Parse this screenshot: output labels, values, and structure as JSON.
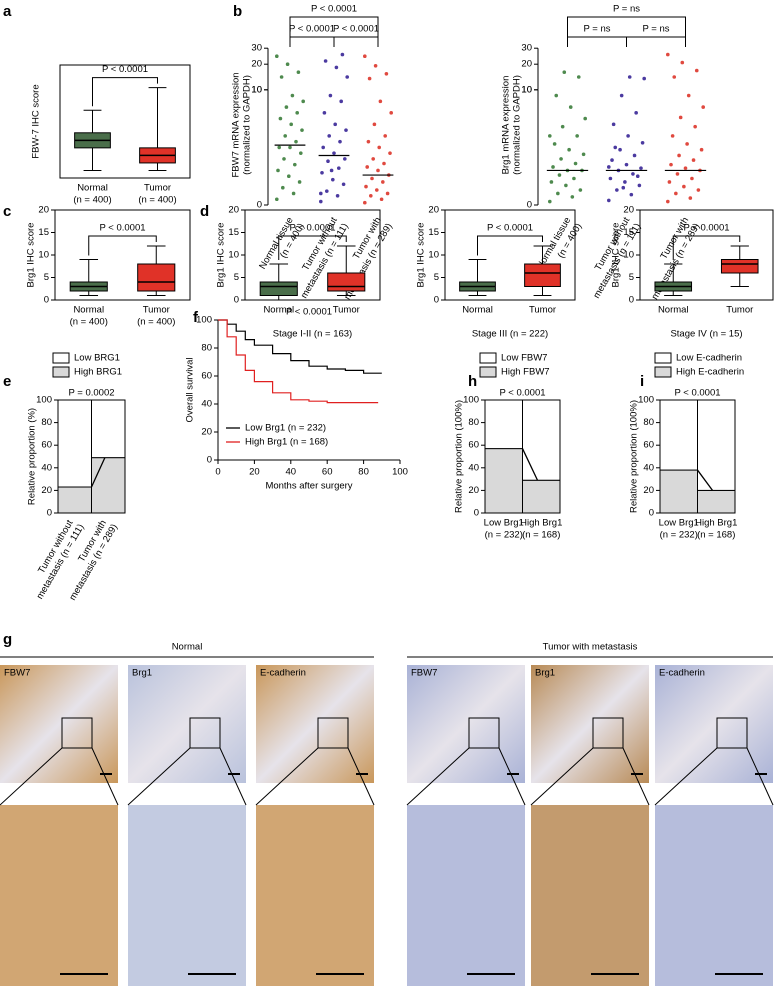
{
  "chart_data": [
    {
      "type": "box",
      "panel": "a",
      "p_label": "P < 0.0001",
      "ylabel": "FBW-7 IHC score",
      "ylim": [
        0,
        15
      ],
      "categories": [
        "Normal",
        "Tumor"
      ],
      "category_notes": [
        "(n = 400)",
        "(n = 400)"
      ],
      "colors": [
        "#4a6e4a",
        "#e03228"
      ],
      "boxes": [
        {
          "whislo": 1,
          "q1": 4,
          "med": 5,
          "q3": 6,
          "whishi": 9
        },
        {
          "whislo": 1,
          "q1": 2,
          "med": 3,
          "q3": 4,
          "whishi": 12
        }
      ]
    },
    {
      "type": "strip",
      "panel": "b",
      "ylabel": [
        "FBW7 mRNA expression",
        "(normalized to GAPDH)"
      ],
      "ylim_lower": [
        0,
        10
      ],
      "yticks_lower": [
        0,
        10
      ],
      "ylim_upper": [
        10,
        30
      ],
      "yticks_upper": [
        10,
        20,
        30
      ],
      "comparisons": [
        "P < 0.0001",
        "P < 0.0001",
        "P < 0.0001"
      ],
      "categories": [
        "Normal tissue",
        "Tumor without",
        "Tumor with"
      ],
      "category_notes": [
        "(n = 400)",
        "metastasis (n = 111)",
        "metastasis (n = 289)"
      ],
      "series": [
        {
          "color": "#4e8a4e",
          "median": 5.2,
          "values": [
            0.5,
            1,
            1.5,
            2,
            2.5,
            3,
            3.5,
            4,
            4.5,
            5,
            5,
            5.5,
            6,
            6.5,
            7,
            7.5,
            8,
            8.5,
            9,
            9.5,
            12,
            15,
            20,
            25
          ]
        },
        {
          "color": "#4b3aa0",
          "median": 4.3,
          "values": [
            0.3,
            0.8,
            1.2,
            1.8,
            2.2,
            2.8,
            3.2,
            3.8,
            4,
            4.5,
            5,
            5.5,
            6,
            6.5,
            7,
            8,
            9,
            9.5,
            12,
            18,
            22,
            26,
            3,
            1
          ]
        },
        {
          "color": "#e0493f",
          "median": 2.6,
          "values": [
            0.2,
            0.5,
            0.8,
            1,
            1.3,
            1.6,
            2,
            2.3,
            2.6,
            3,
            3.3,
            3.6,
            4,
            4.5,
            5,
            5.5,
            6,
            7,
            8,
            9,
            11,
            14,
            19,
            25
          ]
        }
      ]
    },
    {
      "type": "strip",
      "ylabel": [
        "Brg1 mRNA expression",
        "(normalized to GAPDH)"
      ],
      "ylim_lower": [
        0,
        10
      ],
      "yticks_lower": [
        0,
        10
      ],
      "ylim_upper": [
        10,
        30
      ],
      "yticks_upper": [
        10,
        20,
        30
      ],
      "comparisons": [
        "P = ns",
        "P = ns",
        "P = ns"
      ],
      "categories": [
        "Normal tissue",
        "Tumor without",
        "Tumor with"
      ],
      "category_notes": [
        "(n = 400)",
        "metastasis (n = 111)",
        "metastasis (n = 289)"
      ],
      "series": [
        {
          "color": "#4e8a4e",
          "median": 3,
          "values": [
            0.3,
            0.7,
            1,
            1.3,
            1.7,
            2,
            2.3,
            2.6,
            3,
            3,
            3.3,
            3.6,
            4,
            4.4,
            4.8,
            5.3,
            6,
            6.8,
            7.5,
            8.5,
            9.5,
            12,
            15,
            6
          ]
        },
        {
          "color": "#4b3aa0",
          "median": 3,
          "values": [
            0.4,
            0.9,
            1.3,
            1.7,
            2,
            2.3,
            2.7,
            3,
            3.2,
            3.5,
            3.9,
            4.3,
            4.8,
            5.4,
            6,
            7,
            8,
            9.5,
            11,
            12,
            5,
            2.5,
            1.5,
            3.3
          ]
        },
        {
          "color": "#e0493f",
          "median": 3,
          "values": [
            0.3,
            0.6,
            1,
            1.3,
            1.6,
            2,
            2.3,
            2.7,
            3,
            3.2,
            3.5,
            3.9,
            4.3,
            4.8,
            5.3,
            6,
            6.8,
            7.6,
            8.5,
            9.5,
            12,
            16,
            21,
            26
          ]
        }
      ]
    },
    {
      "type": "box",
      "panel": "c",
      "p_label": "P < 0.0001",
      "ylabel": "Brg1 IHC score",
      "ylim": [
        0,
        20
      ],
      "yticks": [
        0,
        5,
        10,
        15,
        20
      ],
      "categories": [
        "Normal",
        "Tumor"
      ],
      "category_notes": [
        "(n = 400)",
        "(n = 400)"
      ],
      "colors": [
        "#4a6e4a",
        "#e03228"
      ],
      "boxes": [
        {
          "whislo": 1,
          "q1": 2,
          "med": 3,
          "q3": 4,
          "whishi": 9
        },
        {
          "whislo": 1,
          "q1": 2,
          "med": 4,
          "q3": 8,
          "whishi": 12
        }
      ]
    },
    {
      "type": "box",
      "panel": "d",
      "p_label": "P < 0.0001",
      "ylabel": "Brg1 IHC score",
      "ylim": [
        0,
        20
      ],
      "yticks": [
        0,
        5,
        10,
        15,
        20
      ],
      "categories": [
        "Normal",
        "Tumor"
      ],
      "xlabel": "Stage I-II (n = 163)",
      "colors": [
        "#4a6e4a",
        "#e03228"
      ],
      "boxes": [
        {
          "whislo": 0,
          "q1": 1,
          "med": 3,
          "q3": 4,
          "whishi": 8
        },
        {
          "whislo": 1,
          "q1": 2,
          "med": 3,
          "q3": 6,
          "whishi": 12
        }
      ]
    },
    {
      "type": "box",
      "p_label": "P < 0.0001",
      "ylabel": "Brg1 IHC score",
      "ylim": [
        0,
        20
      ],
      "yticks": [
        0,
        5,
        10,
        15,
        20
      ],
      "categories": [
        "Normal",
        "Tumor"
      ],
      "xlabel": "Stage III (n = 222)",
      "colors": [
        "#4a6e4a",
        "#e03228"
      ],
      "boxes": [
        {
          "whislo": 1,
          "q1": 2,
          "med": 3,
          "q3": 4,
          "whishi": 9
        },
        {
          "whislo": 1,
          "q1": 3,
          "med": 6,
          "q3": 8,
          "whishi": 12
        }
      ]
    },
    {
      "type": "box",
      "p_label": "P < 0.0001",
      "ylabel": "Brg1 IHC score",
      "ylim": [
        0,
        20
      ],
      "yticks": [
        0,
        5,
        10,
        15,
        20
      ],
      "categories": [
        "Normal",
        "Tumor"
      ],
      "xlabel": "Stage IV (n = 15)",
      "colors": [
        "#4a6e4a",
        "#e03228"
      ],
      "boxes": [
        {
          "whislo": 1,
          "q1": 2,
          "med": 3,
          "q3": 4,
          "whishi": 8
        },
        {
          "whislo": 3,
          "q1": 6,
          "med": 8,
          "q3": 9,
          "whishi": 12
        }
      ]
    },
    {
      "type": "stacked",
      "panel": "e",
      "p_label": "P = 0.0002",
      "ylabel": "Relative proportion (%)",
      "ylim": [
        0,
        100
      ],
      "yticks": [
        0,
        20,
        40,
        60,
        80,
        100
      ],
      "categories": [
        "Tumor without",
        "Tumor with"
      ],
      "category_notes": [
        "metastasis (n = 111)",
        "metastasis (n = 289)"
      ],
      "series": [
        {
          "name": "Low BRG1",
          "color": "#ffffff",
          "values": [
            77,
            51
          ]
        },
        {
          "name": "High BRG1",
          "color": "#d9d9d9",
          "values": [
            23,
            49
          ]
        }
      ]
    },
    {
      "type": "survival",
      "panel": "f",
      "p_label": "P < 0.0001",
      "ylabel": "Overall survival",
      "xlabel": "Months after surgery",
      "xlim": [
        0,
        100
      ],
      "xticks": [
        0,
        20,
        40,
        60,
        80,
        100
      ],
      "ylim": [
        0,
        100
      ],
      "yticks": [
        0,
        20,
        40,
        60,
        80,
        100
      ],
      "series": [
        {
          "name": "Low Brg1 (n = 232)",
          "color": "#000000",
          "x": [
            0,
            5,
            10,
            15,
            20,
            30,
            40,
            50,
            60,
            70,
            80,
            90
          ],
          "values": [
            100,
            97,
            92,
            86,
            82,
            76,
            71,
            67,
            65,
            64,
            62,
            62
          ]
        },
        {
          "name": "High Brg1 (n = 168)",
          "color": "#e02020",
          "x": [
            0,
            5,
            10,
            15,
            20,
            30,
            40,
            50,
            60,
            70,
            80,
            88
          ],
          "values": [
            100,
            88,
            75,
            64,
            56,
            48,
            43,
            42,
            41,
            41,
            41,
            41
          ]
        }
      ]
    },
    {
      "type": "stacked",
      "panel": "h",
      "p_label": "P < 0.0001",
      "ylabel": "Relative proportion (100%)",
      "ylim": [
        0,
        100
      ],
      "yticks": [
        0,
        20,
        40,
        60,
        80,
        100
      ],
      "categories": [
        "Low Brg1",
        "High Brg1"
      ],
      "category_notes": [
        "(n = 232)",
        "(n = 168)"
      ],
      "series": [
        {
          "name": "Low FBW7",
          "color": "#ffffff",
          "values": [
            43,
            71
          ]
        },
        {
          "name": "High FBW7",
          "color": "#d9d9d9",
          "values": [
            57,
            29
          ]
        }
      ]
    },
    {
      "type": "stacked",
      "panel": "i",
      "p_label": "P < 0.0001",
      "ylabel": "Relative proportion (100%)",
      "ylim": [
        0,
        100
      ],
      "yticks": [
        0,
        20,
        40,
        60,
        80,
        100
      ],
      "categories": [
        "Low Brg1",
        "High Brg1"
      ],
      "category_notes": [
        "(n = 232)",
        "(n = 168)"
      ],
      "series": [
        {
          "name": "Low E-cadherin",
          "color": "#ffffff",
          "values": [
            62,
            80
          ]
        },
        {
          "name": "High E-cadherin",
          "color": "#d9d9d9",
          "values": [
            38,
            20
          ]
        }
      ]
    }
  ],
  "images": {
    "panel": "g",
    "groups": [
      {
        "title": "Normal",
        "labels": [
          "FBW7",
          "Brg1",
          "E-cadherin"
        ]
      },
      {
        "title": "Tumor with metastasis",
        "labels": [
          "FBW7",
          "Brg1",
          "E-cadherin"
        ]
      }
    ]
  }
}
